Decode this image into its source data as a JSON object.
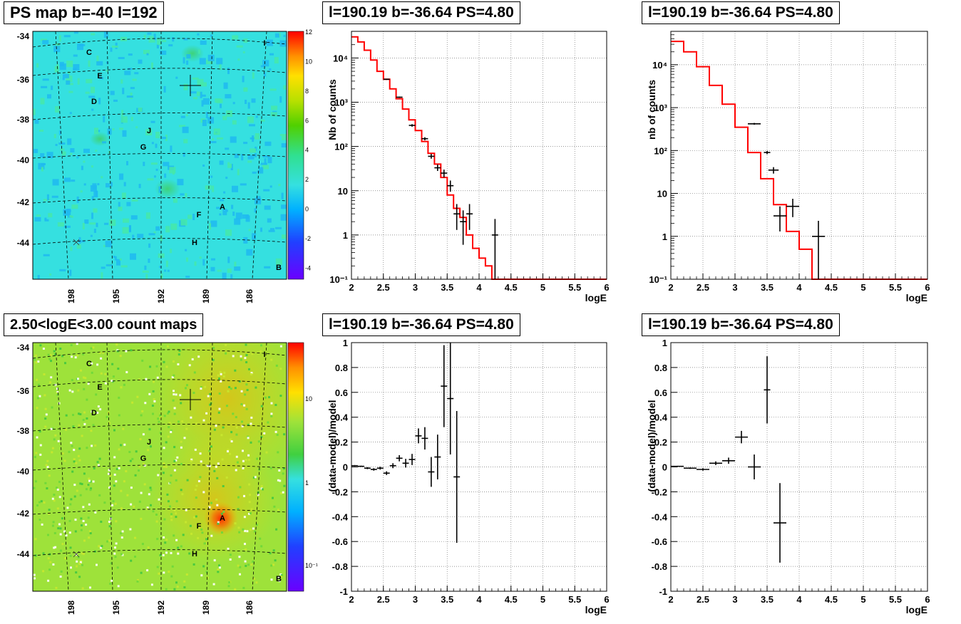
{
  "titles": {
    "map_top": "PS map b=-40 l=192",
    "map_bottom": "2.50<logE<3.00 count maps",
    "p2": "l=190.19 b=-36.64 PS=4.80",
    "p3": "l=190.19 b=-36.64 PS=4.80",
    "p5": "l=190.19 b=-36.64 PS=4.80",
    "p6": "l=190.19 b=-36.64 PS=4.80"
  },
  "colors": {
    "map_background_top": "#35e0e0",
    "map_background_bottom": "#9ee23a",
    "model_line": "#ff0000",
    "data_points": "#000000"
  },
  "sky_map": {
    "y_ticks": [
      "-34",
      "-36",
      "-38",
      "-40",
      "-42",
      "-44"
    ],
    "x_ticks": [
      "198",
      "195",
      "192",
      "189",
      "186"
    ],
    "source_labels": [
      "C",
      "E",
      "D",
      "J",
      "G",
      "F",
      "A",
      "H",
      "B",
      "I"
    ],
    "colorbar_top": [
      "12",
      "10",
      "8",
      "6",
      "4",
      "2",
      "0",
      "-2",
      "-4"
    ],
    "colorbar_bottom": [
      "10",
      "1",
      "10⁻¹"
    ]
  },
  "chart_data": [
    {
      "type": "line",
      "panel": "top-middle",
      "title": "l=190.19 b=-36.64 PS=4.80",
      "xlabel": "logE",
      "ylabel": "Nb of counts",
      "xlim": [
        2,
        6
      ],
      "ylim": [
        0.1,
        40000
      ],
      "log_y": true,
      "grid": true,
      "x_ticks": [
        "2",
        "2.5",
        "3",
        "3.5",
        "4",
        "4.5",
        "5",
        "5.5",
        "6"
      ],
      "y_ticks": [
        {
          "v": 10000,
          "t": "10⁴"
        },
        {
          "v": 1000,
          "t": "10³"
        },
        {
          "v": 100,
          "t": "10²"
        },
        {
          "v": 10,
          "t": "10"
        },
        {
          "v": 1,
          "t": "1"
        },
        {
          "v": 0.1,
          "t": "10⁻¹"
        }
      ],
      "model_step": {
        "edges": [
          2.0,
          2.1,
          2.2,
          2.3,
          2.4,
          2.5,
          2.6,
          2.7,
          2.8,
          2.9,
          3.0,
          3.1,
          3.2,
          3.3,
          3.4,
          3.5,
          3.6,
          3.7,
          3.8,
          3.9,
          4.0,
          4.1,
          4.2,
          4.3,
          6.0
        ],
        "values": [
          30000,
          23000,
          15000,
          9000,
          5000,
          3300,
          2000,
          1200,
          700,
          400,
          230,
          130,
          70,
          40,
          20,
          8,
          4,
          2.5,
          1,
          0.5,
          0.3,
          0.2,
          0.1,
          0.1
        ]
      },
      "data": [
        {
          "x": 2.55,
          "y": 3300,
          "xe": 0.05,
          "ylo": 3200,
          "yhi": 3400
        },
        {
          "x": 2.75,
          "y": 1300,
          "xe": 0.05,
          "ylo": 1260,
          "yhi": 1340
        },
        {
          "x": 2.95,
          "y": 300,
          "xe": 0.05,
          "ylo": 280,
          "yhi": 320
        },
        {
          "x": 3.15,
          "y": 150,
          "xe": 0.05,
          "ylo": 138,
          "yhi": 162
        },
        {
          "x": 3.25,
          "y": 60,
          "xe": 0.05,
          "ylo": 53,
          "yhi": 68
        },
        {
          "x": 3.35,
          "y": 33,
          "xe": 0.05,
          "ylo": 28,
          "yhi": 39
        },
        {
          "x": 3.45,
          "y": 25,
          "xe": 0.05,
          "ylo": 20,
          "yhi": 30
        },
        {
          "x": 3.55,
          "y": 13,
          "xe": 0.05,
          "ylo": 9.5,
          "yhi": 17
        },
        {
          "x": 3.65,
          "y": 3,
          "xe": 0.05,
          "ylo": 1.3,
          "yhi": 5
        },
        {
          "x": 3.75,
          "y": 2,
          "xe": 0.05,
          "ylo": 0.6,
          "yhi": 3.6
        },
        {
          "x": 3.85,
          "y": 3,
          "xe": 0.05,
          "ylo": 1.3,
          "yhi": 5
        },
        {
          "x": 4.25,
          "y": 1,
          "xe": 0.05,
          "ylo": 0.1,
          "yhi": 2.3
        }
      ]
    },
    {
      "type": "line",
      "panel": "top-right",
      "title": "l=190.19 b=-36.64 PS=4.80",
      "xlabel": "logE",
      "ylabel": "nb of counts",
      "xlim": [
        2,
        6
      ],
      "ylim": [
        0.1,
        60000
      ],
      "log_y": true,
      "grid": true,
      "x_ticks": [
        "2",
        "2.5",
        "3",
        "3.5",
        "4",
        "4.5",
        "5",
        "5.5",
        "6"
      ],
      "y_ticks": [
        {
          "v": 10000,
          "t": "10⁴"
        },
        {
          "v": 1000,
          "t": "10³"
        },
        {
          "v": 100,
          "t": "10²"
        },
        {
          "v": 10,
          "t": "10"
        },
        {
          "v": 1,
          "t": "1"
        },
        {
          "v": 0.1,
          "t": "10⁻¹"
        }
      ],
      "model_step": {
        "edges": [
          2.0,
          2.2,
          2.4,
          2.6,
          2.8,
          3.0,
          3.2,
          3.4,
          3.6,
          3.8,
          4.0,
          4.2,
          6.0
        ],
        "values": [
          35000,
          20000,
          9000,
          3300,
          1200,
          350,
          90,
          22,
          5.5,
          1.3,
          0.5,
          0.1
        ]
      },
      "data": [
        {
          "x": 3.3,
          "y": 420,
          "xe": 0.1,
          "ylo": 400,
          "yhi": 440
        },
        {
          "x": 3.5,
          "y": 90,
          "xe": 0.05,
          "ylo": 82,
          "yhi": 98
        },
        {
          "x": 3.6,
          "y": 35,
          "xe": 0.08,
          "ylo": 29,
          "yhi": 41
        },
        {
          "x": 3.7,
          "y": 3,
          "xe": 0.1,
          "ylo": 1.3,
          "yhi": 5
        },
        {
          "x": 3.9,
          "y": 5,
          "xe": 0.1,
          "ylo": 2.8,
          "yhi": 7.5
        },
        {
          "x": 4.3,
          "y": 1,
          "xe": 0.1,
          "ylo": 0.1,
          "yhi": 2.3
        }
      ]
    },
    {
      "type": "scatter",
      "panel": "bottom-middle",
      "title": "l=190.19 b=-36.64 PS=4.80",
      "xlabel": "logE",
      "ylabel": "(data-model)/model",
      "xlim": [
        2,
        6
      ],
      "ylim": [
        -1,
        1
      ],
      "grid": true,
      "x_ticks": [
        "2",
        "2.5",
        "3",
        "3.5",
        "4",
        "4.5",
        "5",
        "5.5",
        "6"
      ],
      "y_ticks": [
        "1",
        "0.8",
        "0.6",
        "0.4",
        "0.2",
        "0",
        "-0.2",
        "-0.4",
        "-0.6",
        "-0.8",
        "-1"
      ],
      "data": [
        {
          "x": 2.05,
          "y": 0.01,
          "xe": 0.05,
          "ye": 0.005
        },
        {
          "x": 2.15,
          "y": 0.005,
          "xe": 0.05,
          "ye": 0.005
        },
        {
          "x": 2.25,
          "y": -0.01,
          "xe": 0.05,
          "ye": 0.008
        },
        {
          "x": 2.35,
          "y": -0.02,
          "xe": 0.05,
          "ye": 0.01
        },
        {
          "x": 2.45,
          "y": -0.01,
          "xe": 0.05,
          "ye": 0.012
        },
        {
          "x": 2.55,
          "y": -0.05,
          "xe": 0.05,
          "ye": 0.015
        },
        {
          "x": 2.65,
          "y": 0.01,
          "xe": 0.05,
          "ye": 0.02
        },
        {
          "x": 2.75,
          "y": 0.07,
          "xe": 0.05,
          "ye": 0.025
        },
        {
          "x": 2.85,
          "y": 0.03,
          "xe": 0.05,
          "ye": 0.035
        },
        {
          "x": 2.95,
          "y": 0.06,
          "xe": 0.05,
          "ye": 0.045
        },
        {
          "x": 3.05,
          "y": 0.25,
          "xe": 0.05,
          "ye": 0.06
        },
        {
          "x": 3.15,
          "y": 0.23,
          "xe": 0.05,
          "ye": 0.09
        },
        {
          "x": 3.25,
          "y": -0.04,
          "xe": 0.05,
          "ye": 0.12
        },
        {
          "x": 3.35,
          "y": 0.08,
          "xe": 0.05,
          "ye": 0.18
        },
        {
          "x": 3.45,
          "y": 0.65,
          "xe": 0.05,
          "ye": 0.33
        },
        {
          "x": 3.55,
          "y": 0.55,
          "xe": 0.05,
          "ye": 0.45
        },
        {
          "x": 3.65,
          "y": -0.08,
          "xe": 0.05,
          "ye": 0.53
        }
      ]
    },
    {
      "type": "scatter",
      "panel": "bottom-right",
      "title": "l=190.19 b=-36.64 PS=4.80",
      "xlabel": "logE",
      "ylabel": "(data-model)/model",
      "xlim": [
        2,
        6
      ],
      "ylim": [
        -1,
        1
      ],
      "grid": true,
      "x_ticks": [
        "2",
        "2.5",
        "3",
        "3.5",
        "4",
        "4.5",
        "5",
        "5.5",
        "6"
      ],
      "y_ticks": [
        "1",
        "0.8",
        "0.6",
        "0.4",
        "0.2",
        "0",
        "-0.2",
        "-0.4",
        "-0.6",
        "-0.8",
        "-1"
      ],
      "data": [
        {
          "x": 2.1,
          "y": 0.005,
          "xe": 0.1,
          "ye": 0.004
        },
        {
          "x": 2.3,
          "y": -0.01,
          "xe": 0.1,
          "ye": 0.006
        },
        {
          "x": 2.5,
          "y": -0.02,
          "xe": 0.1,
          "ye": 0.01
        },
        {
          "x": 2.7,
          "y": 0.03,
          "xe": 0.1,
          "ye": 0.015
        },
        {
          "x": 2.9,
          "y": 0.05,
          "xe": 0.1,
          "ye": 0.025
        },
        {
          "x": 3.1,
          "y": 0.24,
          "xe": 0.1,
          "ye": 0.05
        },
        {
          "x": 3.3,
          "y": 0.0,
          "xe": 0.1,
          "ye": 0.1
        },
        {
          "x": 3.5,
          "y": 0.62,
          "xe": 0.05,
          "ye": 0.27
        },
        {
          "x": 3.7,
          "y": -0.45,
          "xe": 0.1,
          "ye": 0.32
        }
      ]
    }
  ]
}
